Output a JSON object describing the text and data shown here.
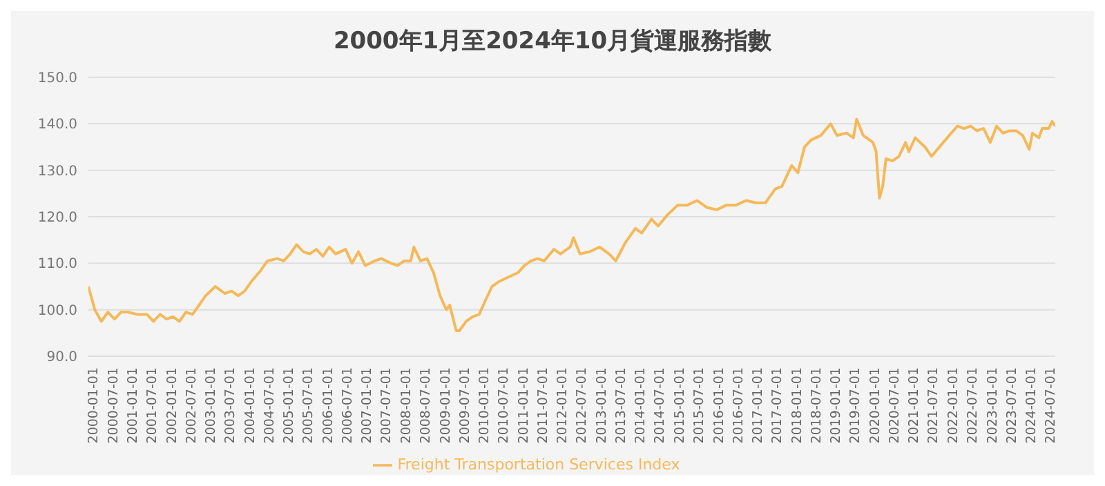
{
  "chart_data": {
    "type": "line",
    "title": "2000年1月至2024年10月貨運服務指數",
    "x": [
      "2000-01",
      "2000-03",
      "2000-05",
      "2000-07",
      "2000-09",
      "2000-11",
      "2001-01",
      "2001-04",
      "2001-07",
      "2001-09",
      "2001-11",
      "2002-01",
      "2002-03",
      "2002-05",
      "2002-07",
      "2002-09",
      "2002-11",
      "2003-01",
      "2003-04",
      "2003-07",
      "2003-09",
      "2003-11",
      "2004-01",
      "2004-03",
      "2004-06",
      "2004-08",
      "2004-11",
      "2005-01",
      "2005-03",
      "2005-05",
      "2005-07",
      "2005-09",
      "2005-11",
      "2006-01",
      "2006-03",
      "2006-05",
      "2006-08",
      "2006-10",
      "2006-12",
      "2007-02",
      "2007-05",
      "2007-07",
      "2007-10",
      "2007-12",
      "2008-02",
      "2008-04",
      "2008-05",
      "2008-07",
      "2008-09",
      "2008-11",
      "2009-01",
      "2009-03",
      "2009-04",
      "2009-06",
      "2009-07",
      "2009-09",
      "2009-11",
      "2010-01",
      "2010-03",
      "2010-05",
      "2010-07",
      "2010-10",
      "2011-01",
      "2011-03",
      "2011-05",
      "2011-07",
      "2011-09",
      "2011-12",
      "2012-02",
      "2012-05",
      "2012-06",
      "2012-08",
      "2012-11",
      "2013-02",
      "2013-05",
      "2013-07",
      "2013-10",
      "2014-01",
      "2014-03",
      "2014-06",
      "2014-08",
      "2014-11",
      "2015-02",
      "2015-05",
      "2015-08",
      "2015-11",
      "2016-02",
      "2016-05",
      "2016-08",
      "2016-11",
      "2017-02",
      "2017-05",
      "2017-08",
      "2017-10",
      "2018-01",
      "2018-03",
      "2018-05",
      "2018-07",
      "2018-10",
      "2019-01",
      "2019-03",
      "2019-06",
      "2019-08",
      "2019-09",
      "2019-11",
      "2020-02",
      "2020-03",
      "2020-04",
      "2020-05",
      "2020-06",
      "2020-08",
      "2020-10",
      "2020-12",
      "2021-01",
      "2021-03",
      "2021-06",
      "2021-08",
      "2021-11",
      "2022-02",
      "2022-04",
      "2022-06",
      "2022-08",
      "2022-10",
      "2022-12",
      "2023-02",
      "2023-04",
      "2023-06",
      "2023-08",
      "2023-10",
      "2023-12",
      "2024-02",
      "2024-03",
      "2024-05",
      "2024-06",
      "2024-08",
      "2024-09",
      "2024-10"
    ],
    "series": [
      {
        "name": "Freight Transportation Services Index",
        "color": "#f5b95a",
        "values": [
          105,
          100,
          97.5,
          99.5,
          98,
          99.5,
          99.5,
          99,
          99,
          97.5,
          99,
          98,
          98.5,
          97.5,
          99.5,
          99,
          101,
          103,
          105,
          103.5,
          104,
          103,
          104,
          106,
          108.5,
          110.5,
          111,
          110.5,
          112,
          114,
          112.5,
          112,
          113,
          111.5,
          113.5,
          112,
          113,
          110,
          112.5,
          109.5,
          110.5,
          111,
          110,
          109.5,
          110.5,
          110.5,
          113.5,
          110.5,
          111,
          108,
          103,
          100,
          101,
          95.5,
          95.5,
          97.5,
          98.5,
          99,
          102,
          105,
          106,
          107,
          108,
          109.5,
          110.5,
          111,
          110.5,
          113,
          112,
          113.5,
          115.5,
          112,
          112.5,
          113.5,
          112,
          110.5,
          114.5,
          117.5,
          116.5,
          119.5,
          118,
          120.5,
          122.5,
          122.5,
          123.5,
          122,
          121.5,
          122.5,
          122.5,
          123.5,
          123,
          123,
          126,
          126.5,
          131,
          129.5,
          135,
          136.5,
          137.5,
          140,
          137.5,
          138,
          137,
          141,
          137.5,
          136,
          134,
          124,
          126.5,
          132.5,
          132,
          133,
          136,
          134,
          137,
          135,
          133,
          135.5,
          138,
          139.5,
          139,
          139.5,
          138.5,
          139,
          136,
          139.5,
          138,
          138.5,
          138.5,
          137.5,
          134.5,
          138,
          137,
          139,
          139,
          140.5,
          139.5
        ]
      }
    ],
    "xlim": [
      "2000-01",
      "2024-10"
    ],
    "xticks": [
      "2000-01-01",
      "2000-07-01",
      "2001-01-01",
      "2001-07-01",
      "2002-01-01",
      "2002-07-01",
      "2003-01-01",
      "2003-07-01",
      "2004-01-01",
      "2004-07-01",
      "2005-01-01",
      "2005-07-01",
      "2006-01-01",
      "2006-07-01",
      "2007-01-01",
      "2007-07-01",
      "2008-01-01",
      "2008-07-01",
      "2009-01-01",
      "2009-07-01",
      "2010-01-01",
      "2010-07-01",
      "2011-01-01",
      "2011-07-01",
      "2012-01-01",
      "2012-07-01",
      "2013-01-01",
      "2013-07-01",
      "2014-01-01",
      "2014-07-01",
      "2015-01-01",
      "2015-07-01",
      "2016-01-01",
      "2016-07-01",
      "2017-01-01",
      "2017-07-01",
      "2018-01-01",
      "2018-07-01",
      "2019-01-01",
      "2019-07-01",
      "2020-01-01",
      "2020-07-01",
      "2021-01-01",
      "2021-07-01",
      "2022-01-01",
      "2022-07-01",
      "2023-01-01",
      "2023-07-01",
      "2024-01-01",
      "2024-07-01"
    ],
    "ylim": [
      90,
      150
    ],
    "yticks": [
      {
        "value": 90,
        "label": "90.0"
      },
      {
        "value": 100,
        "label": "100.0"
      },
      {
        "value": 110,
        "label": "110.0"
      },
      {
        "value": 120,
        "label": "120.0"
      },
      {
        "value": 130,
        "label": "130.0"
      },
      {
        "value": 140,
        "label": "140.0"
      },
      {
        "value": 150,
        "label": "150.0"
      }
    ],
    "grid": "y",
    "legend": "bottom",
    "marker": "none",
    "line_style": "solid"
  }
}
